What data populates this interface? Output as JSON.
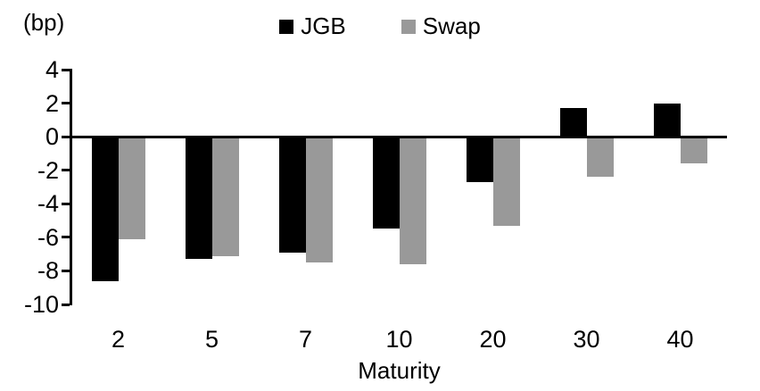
{
  "chart_data": {
    "type": "bar",
    "title": "",
    "unit_label": "(bp)",
    "xlabel": "Maturity",
    "categories": [
      "2",
      "5",
      "7",
      "10",
      "20",
      "30",
      "40"
    ],
    "series": [
      {
        "name": "JGB",
        "color": "#000000",
        "values": [
          -8.6,
          -7.3,
          -6.9,
          -5.5,
          -2.7,
          1.7,
          2.0
        ]
      },
      {
        "name": "Swap",
        "color": "#999999",
        "values": [
          -6.1,
          -7.1,
          -7.5,
          -7.6,
          -5.3,
          -2.4,
          -1.6
        ]
      }
    ],
    "y_ticks": [
      4,
      2,
      0,
      -2,
      -4,
      -6,
      -8,
      -10
    ],
    "ylim": [
      -10,
      4
    ],
    "grid": false,
    "legend_position": "top-center",
    "axis_color": "#000000",
    "background": "#ffffff"
  }
}
